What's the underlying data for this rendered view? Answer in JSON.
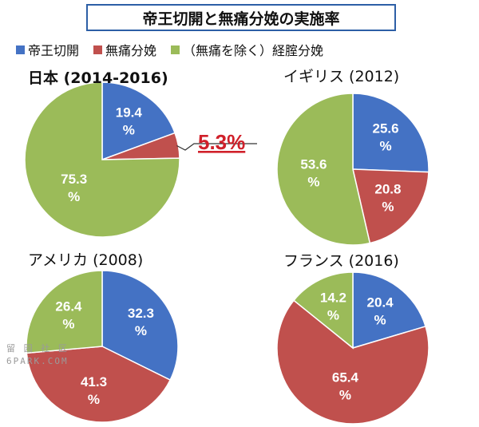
{
  "title": "帝王切開と無痛分娩の実施率",
  "legend": [
    {
      "label": "帝王切開",
      "color": "#4472c4"
    },
    {
      "label": "無痛分娩",
      "color": "#c0504d"
    },
    {
      "label": "（無痛を除く）経腟分娩",
      "color": "#9bbb59"
    }
  ],
  "chart_data": [
    {
      "type": "pie",
      "title": "日本 (2014-2016)",
      "values": [
        19.4,
        5.3,
        75.3
      ],
      "labels": [
        "19.4\n%",
        "",
        "75.3\n%"
      ],
      "callout": "5.3%",
      "colors": [
        "#4472c4",
        "#c0504d",
        "#9bbb59"
      ]
    },
    {
      "type": "pie",
      "title": "イギリス (2012)",
      "values": [
        25.6,
        20.8,
        53.6
      ],
      "labels": [
        "25.6\n%",
        "20.8\n%",
        "53.6\n%"
      ],
      "colors": [
        "#4472c4",
        "#c0504d",
        "#9bbb59"
      ]
    },
    {
      "type": "pie",
      "title": "アメリカ (2008)",
      "values": [
        32.3,
        41.3,
        26.4
      ],
      "labels": [
        "32.3\n%",
        "41.3\n%",
        "26.4\n%"
      ],
      "colors": [
        "#4472c4",
        "#c0504d",
        "#9bbb59"
      ]
    },
    {
      "type": "pie",
      "title": "フランス (2016)",
      "values": [
        20.4,
        65.4,
        14.2
      ],
      "labels": [
        "20.4\n%",
        "65.4\n%",
        "14.2\n%"
      ],
      "colors": [
        "#4472c4",
        "#c0504d",
        "#9bbb59"
      ]
    }
  ],
  "watermark": {
    "line1": "留 园 社 区",
    "line2": "6PARK.COM"
  }
}
